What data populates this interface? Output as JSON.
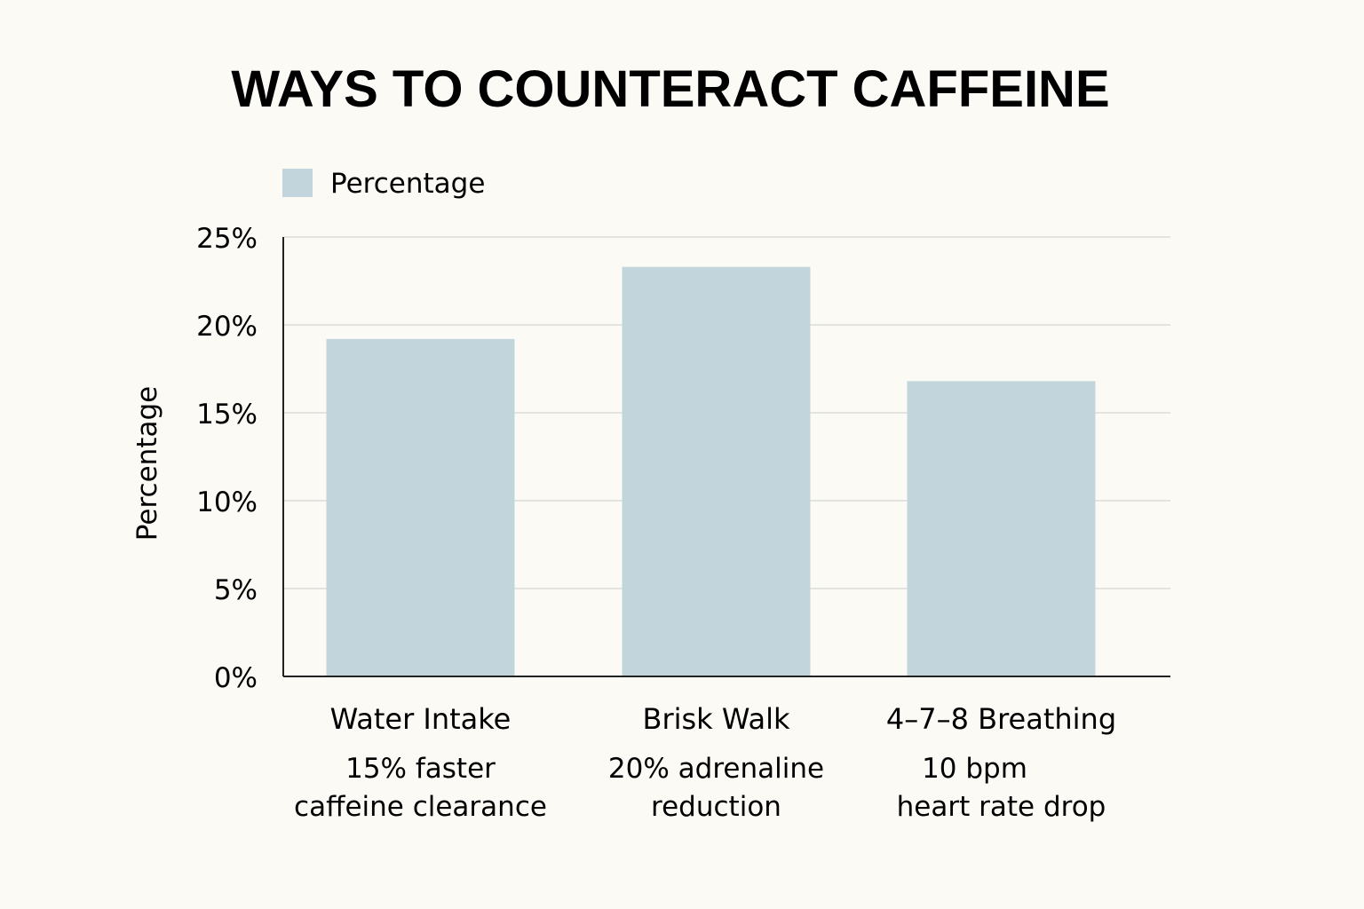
{
  "chart_data": {
    "type": "bar",
    "title": "WAYS TO COUNTERACT CAFFEINE",
    "ylabel": "Percentage",
    "xlabel": "",
    "ylim": [
      0,
      25
    ],
    "yticks": [
      0,
      5,
      10,
      15,
      20,
      25
    ],
    "ytick_labels": [
      "0%",
      "5%",
      "10%",
      "15%",
      "20%",
      "25%"
    ],
    "grid": true,
    "legend": {
      "placement": "top-left",
      "entries": [
        "Percentage"
      ]
    },
    "categories": [
      "Water Intake",
      "Brisk Walk",
      "4–7–8 Breathing"
    ],
    "sublabels": [
      [
        "15% faster",
        "caffeine clearance"
      ],
      [
        "20% adrenaline",
        "reduction"
      ],
      [
        "10 bpm",
        "heart rate drop"
      ]
    ],
    "series": [
      {
        "name": "Percentage",
        "values": [
          19.2,
          23.3,
          16.8
        ]
      }
    ],
    "colors": {
      "bar": "#c3d5dc",
      "grid": "#e3e3e0",
      "axis": "#222222",
      "background": "#fcfaf5"
    }
  }
}
